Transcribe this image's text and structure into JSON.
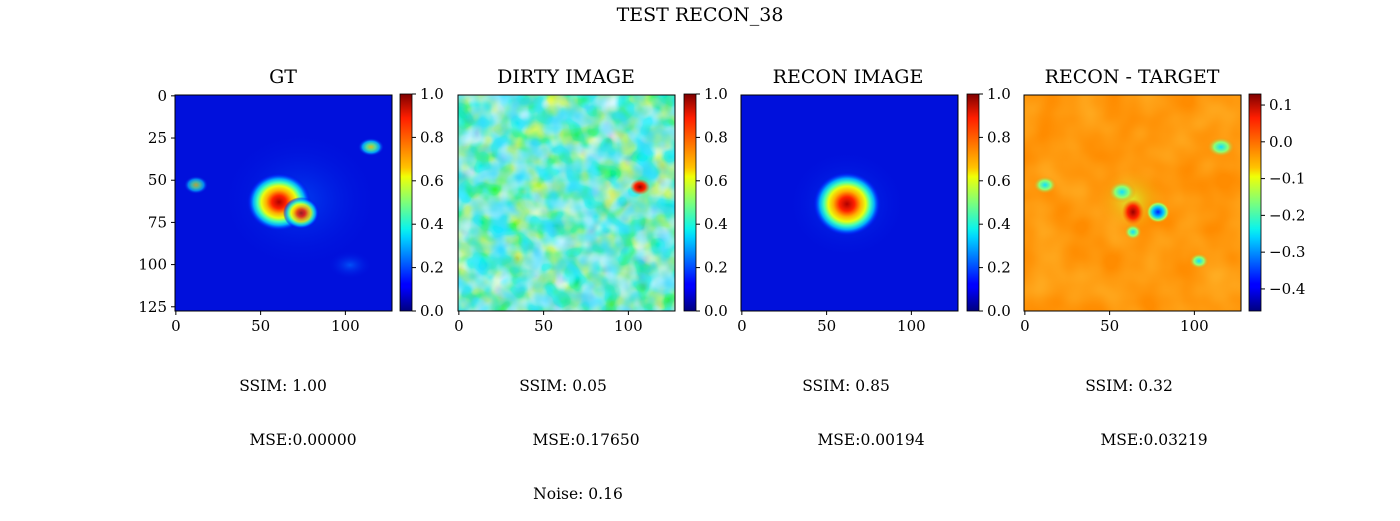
{
  "figure": {
    "title": "TEST RECON_38"
  },
  "chart_data": [
    {
      "type": "heatmap",
      "title": "GT",
      "colormap": "jet",
      "xlim": [
        0,
        127
      ],
      "ylim": [
        127,
        0
      ],
      "x_ticks": [
        "0",
        "50",
        "100"
      ],
      "y_ticks": [
        "0",
        "25",
        "50",
        "75",
        "100",
        "125"
      ],
      "colorbar": {
        "range": [
          0.0,
          1.0
        ],
        "ticks": [
          "0.0",
          "0.2",
          "0.4",
          "0.6",
          "0.8",
          "1.0"
        ]
      },
      "features": [
        {
          "x": 62,
          "y": 62,
          "value": 1.0,
          "shape": "source"
        },
        {
          "x": 76,
          "y": 70,
          "value": 0.75,
          "shape": "source"
        },
        {
          "x": 115,
          "y": 30,
          "value": 0.3,
          "shape": "blob"
        },
        {
          "x": 12,
          "y": 54,
          "value": 0.25,
          "shape": "blob"
        },
        {
          "x": 102,
          "y": 100,
          "value": 0.15,
          "shape": "blob"
        }
      ],
      "metrics": [
        "SSIM: 1.00",
        "MSE:0.00000"
      ]
    },
    {
      "type": "heatmap",
      "title": "DIRTY IMAGE",
      "colormap": "jet",
      "xlim": [
        0,
        127
      ],
      "ylim": [
        127,
        0
      ],
      "x_ticks": [
        "0",
        "50",
        "100"
      ],
      "y_ticks": [],
      "colorbar": {
        "range": [
          0.0,
          1.0
        ],
        "ticks": [
          "0.0",
          "0.2",
          "0.4",
          "0.6",
          "0.8",
          "1.0"
        ]
      },
      "pattern": "noisy speckle field, mean ≈ 0.4",
      "features": [
        {
          "x": 106,
          "y": 55,
          "value": 1.0,
          "shape": "peak"
        }
      ],
      "metrics": [
        "SSIM: 0.05",
        "MSE:0.17650",
        "Noise: 0.16"
      ]
    },
    {
      "type": "heatmap",
      "title": "RECON IMAGE",
      "colormap": "jet",
      "xlim": [
        0,
        127
      ],
      "ylim": [
        127,
        0
      ],
      "x_ticks": [
        "0",
        "50",
        "100"
      ],
      "y_ticks": [],
      "colorbar": {
        "range": [
          0.0,
          1.0
        ],
        "ticks": [
          "0.0",
          "0.2",
          "0.4",
          "0.6",
          "0.8",
          "1.0"
        ]
      },
      "features": [
        {
          "x": 63,
          "y": 64,
          "value": 1.0,
          "shape": "source"
        }
      ],
      "metrics": [
        "SSIM: 0.85",
        "MSE:0.00194"
      ]
    },
    {
      "type": "heatmap",
      "title": "RECON - TARGET",
      "colormap": "jet",
      "xlim": [
        0,
        127
      ],
      "ylim": [
        127,
        0
      ],
      "x_ticks": [
        "0",
        "50",
        "100"
      ],
      "y_ticks": [],
      "colorbar": {
        "range": [
          -0.46,
          0.13
        ],
        "ticks": [
          "0.1",
          "0.0",
          "−0.1",
          "−0.2",
          "−0.3",
          "−0.4"
        ]
      },
      "features": [
        {
          "x": 60,
          "y": 58,
          "value": -0.2,
          "shape": "ring"
        },
        {
          "x": 66,
          "y": 68,
          "value": 0.13,
          "shape": "peak"
        },
        {
          "x": 80,
          "y": 70,
          "value": -0.45,
          "shape": "hole"
        },
        {
          "x": 62,
          "y": 82,
          "value": -0.25,
          "shape": "hole"
        },
        {
          "x": 115,
          "y": 30,
          "value": -0.3,
          "shape": "hole"
        },
        {
          "x": 12,
          "y": 54,
          "value": -0.25,
          "shape": "hole"
        },
        {
          "x": 102,
          "y": 100,
          "value": -0.15,
          "shape": "hole"
        }
      ],
      "metrics": [
        "SSIM: 0.32",
        "MSE:0.03219"
      ]
    }
  ]
}
